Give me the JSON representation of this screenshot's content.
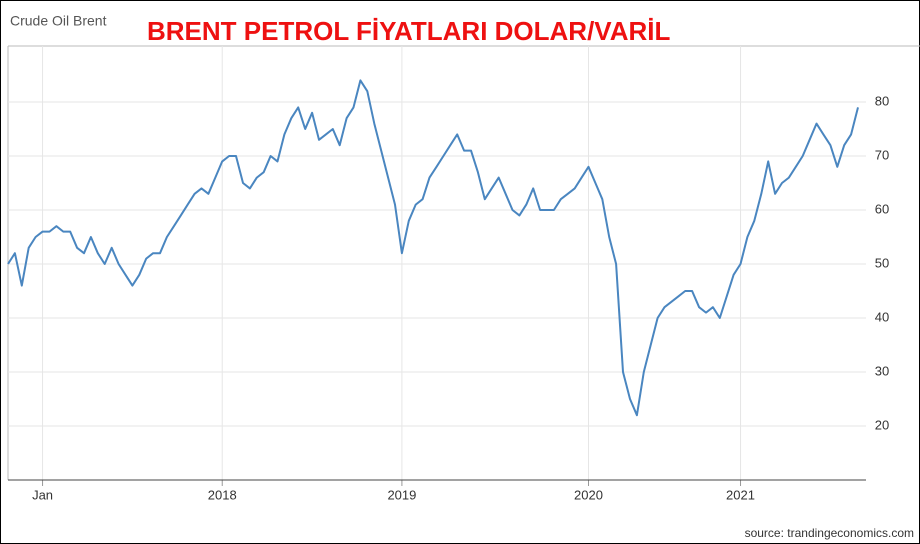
{
  "chart_data": {
    "type": "line",
    "label": "Crude Oil Brent",
    "title": "BRENT PETROL FİYATLARI DOLAR/VARİL",
    "source": "source: trandingeconomics.com",
    "categories": [
      null,
      null,
      null,
      null,
      null,
      "Jan",
      null,
      null,
      null,
      null,
      null,
      null,
      null,
      null,
      null,
      null,
      null,
      null,
      null,
      null,
      null,
      null,
      null,
      null,
      null,
      null,
      null,
      null,
      null,
      null,
      null,
      "2018",
      null,
      null,
      null,
      null,
      null,
      null,
      null,
      null,
      null,
      null,
      null,
      null,
      null,
      null,
      null,
      null,
      null,
      null,
      null,
      null,
      null,
      null,
      null,
      null,
      null,
      "2019",
      null,
      null,
      null,
      null,
      null,
      null,
      null,
      null,
      null,
      null,
      null,
      null,
      null,
      null,
      null,
      null,
      null,
      null,
      null,
      null,
      null,
      null,
      null,
      null,
      null,
      null,
      "2020",
      null,
      null,
      null,
      null,
      null,
      null,
      null,
      null,
      null,
      null,
      null,
      null,
      null,
      null,
      null,
      null,
      null,
      null,
      null,
      null,
      null,
      "2021",
      null,
      null,
      null,
      null,
      null,
      null,
      null,
      null,
      null,
      null,
      null,
      null,
      null,
      null,
      null,
      null,
      null
    ],
    "values": [
      50,
      52,
      46,
      53,
      55,
      56,
      56,
      57,
      56,
      56,
      53,
      52,
      55,
      52,
      50,
      53,
      50,
      48,
      46,
      48,
      51,
      52,
      52,
      55,
      57,
      59,
      61,
      63,
      64,
      63,
      66,
      69,
      70,
      70,
      65,
      64,
      66,
      67,
      70,
      69,
      74,
      77,
      79,
      75,
      78,
      73,
      74,
      75,
      72,
      77,
      79,
      84,
      82,
      76,
      71,
      66,
      61,
      52,
      58,
      61,
      62,
      66,
      68,
      70,
      72,
      74,
      71,
      71,
      67,
      62,
      64,
      66,
      63,
      60,
      59,
      61,
      64,
      60,
      60,
      60,
      62,
      63,
      64,
      66,
      68,
      65,
      62,
      55,
      50,
      30,
      25,
      22,
      30,
      35,
      40,
      42,
      43,
      44,
      45,
      45,
      42,
      41,
      42,
      40,
      44,
      48,
      50,
      55,
      58,
      63,
      69,
      63,
      65,
      66,
      68,
      70,
      73,
      76,
      74,
      72,
      68,
      72,
      74,
      79
    ],
    "color": "#4a86c0",
    "ylim": [
      10,
      90
    ],
    "yticks": [
      20,
      30,
      40,
      50,
      60,
      70,
      80
    ],
    "grid": true
  }
}
